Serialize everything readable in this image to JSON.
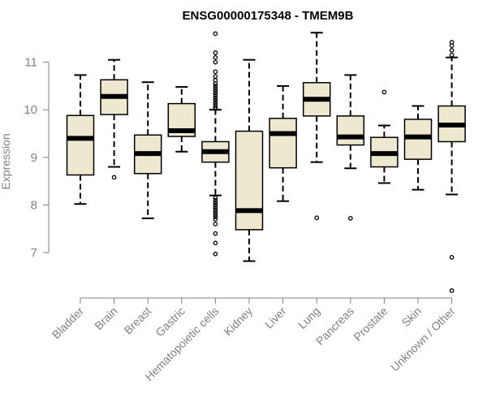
{
  "chart_data": {
    "type": "box",
    "title": "ENSG00000175348 - TMEM9B",
    "xlabel": "",
    "ylabel": "Expression",
    "ylim": [
      6.1,
      11.75
    ],
    "yticks": [
      7,
      8,
      9,
      10,
      11
    ],
    "grid": false,
    "colors": {
      "box_fill": "#EEE8D0",
      "stroke": "#000000",
      "axis": "#808080",
      "tick_label": "#808080"
    },
    "categories": [
      "Bladder",
      "Brain",
      "Breast",
      "Gastric",
      "Hematopoietic cells",
      "Kidney",
      "Liver",
      "Lung",
      "Pancreas",
      "Prostate",
      "Skin",
      "Unknown / Other"
    ],
    "boxes": [
      {
        "name": "Bladder",
        "whisker_low": 8.02,
        "q1": 8.63,
        "median": 9.4,
        "q3": 9.88,
        "whisker_high": 10.73,
        "outliers": []
      },
      {
        "name": "Brain",
        "whisker_low": 8.8,
        "q1": 9.9,
        "median": 10.28,
        "q3": 10.63,
        "whisker_high": 11.05,
        "outliers": [
          8.58
        ]
      },
      {
        "name": "Breast",
        "whisker_low": 7.72,
        "q1": 8.66,
        "median": 9.08,
        "q3": 9.47,
        "whisker_high": 10.58,
        "outliers": []
      },
      {
        "name": "Gastric",
        "whisker_low": 9.12,
        "q1": 9.44,
        "median": 9.56,
        "q3": 10.13,
        "whisker_high": 10.48,
        "outliers": []
      },
      {
        "name": "Hematopoietic cells",
        "whisker_low": 8.2,
        "q1": 8.9,
        "median": 9.12,
        "q3": 9.33,
        "whisker_high": 10.0,
        "outliers": [
          11.6,
          11.2,
          11.1,
          11.0,
          10.8,
          10.7,
          10.62,
          10.55,
          10.5,
          10.45,
          10.4,
          10.35,
          10.3,
          10.25,
          10.2,
          10.15,
          10.1,
          10.05,
          10.02,
          8.15,
          8.1,
          8.05,
          8.0,
          7.95,
          7.9,
          7.85,
          7.8,
          7.75,
          7.7,
          7.6,
          7.4,
          7.2,
          6.97
        ]
      },
      {
        "name": "Kidney",
        "whisker_low": 6.82,
        "q1": 7.48,
        "median": 7.88,
        "q3": 9.55,
        "whisker_high": 11.05,
        "outliers": []
      },
      {
        "name": "Liver",
        "whisker_low": 8.08,
        "q1": 8.78,
        "median": 9.5,
        "q3": 9.82,
        "whisker_high": 10.5,
        "outliers": []
      },
      {
        "name": "Lung",
        "whisker_low": 8.9,
        "q1": 9.87,
        "median": 10.22,
        "q3": 10.57,
        "whisker_high": 11.62,
        "outliers": [
          7.73
        ]
      },
      {
        "name": "Pancreas",
        "whisker_low": 8.77,
        "q1": 9.26,
        "median": 9.43,
        "q3": 9.87,
        "whisker_high": 10.73,
        "outliers": [
          7.72
        ]
      },
      {
        "name": "Prostate",
        "whisker_low": 8.46,
        "q1": 8.8,
        "median": 9.08,
        "q3": 9.42,
        "whisker_high": 9.67,
        "outliers": [
          10.37
        ]
      },
      {
        "name": "Skin",
        "whisker_low": 8.32,
        "q1": 8.96,
        "median": 9.43,
        "q3": 9.8,
        "whisker_high": 10.08,
        "outliers": []
      },
      {
        "name": "Unknown / Other",
        "whisker_low": 8.22,
        "q1": 9.33,
        "median": 9.68,
        "q3": 10.08,
        "whisker_high": 11.1,
        "outliers": [
          11.42,
          11.35,
          11.25,
          11.15,
          6.9,
          6.2
        ]
      }
    ]
  }
}
